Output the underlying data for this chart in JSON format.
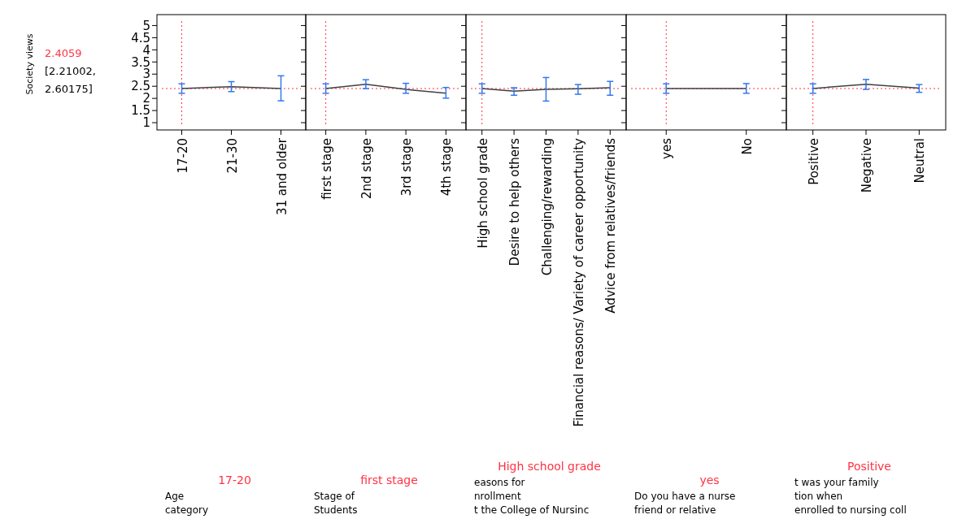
{
  "chart_data": [
    {
      "type": "line",
      "ylabel": "Society views",
      "categories": [
        "17-20",
        "21-30",
        "31 and older"
      ],
      "series": [
        {
          "color": "#404040",
          "values": [
            2.41,
            2.48,
            2.41
          ],
          "errors": [
            [
              2.21,
              2.6
            ],
            [
              2.28,
              2.69
            ],
            [
              1.9,
              2.93
            ]
          ]
        }
      ],
      "ylim": [
        0.7,
        5.45
      ],
      "yticks": [
        1,
        1.5,
        2,
        2.5,
        3,
        3.5,
        4,
        4.5,
        5
      ],
      "ref_lines": [
        {
          "axis": "y",
          "value": 2.4059,
          "color": "#ff3344",
          "line_style": "dotted"
        },
        {
          "axis": "x",
          "value": "17-20",
          "color": "#ff3344",
          "line_style": "dotted"
        }
      ],
      "annotations": [
        "2.4059",
        "[2.21002,",
        "2.60175]",
        "17-20",
        "Age",
        "category"
      ]
    },
    {
      "type": "line",
      "categories": [
        "first stage",
        "2nd stage",
        "3rd stage",
        "4th stage"
      ],
      "series": [
        {
          "color": "#404040",
          "values": [
            2.41,
            2.58,
            2.37,
            2.21
          ],
          "errors": [
            [
              2.21,
              2.6
            ],
            [
              2.4,
              2.77
            ],
            [
              2.21,
              2.62
            ],
            [
              2.01,
              2.45
            ]
          ]
        }
      ],
      "ylim": [
        0.7,
        5.45
      ],
      "yticks": [
        1,
        1.5,
        2,
        2.5,
        3,
        3.5,
        4,
        4.5,
        5
      ],
      "tick_labels": "x",
      "ref_lines": [
        {
          "axis": "y",
          "value": 2.4059,
          "color": "#ff3344",
          "line_style": "dotted"
        },
        {
          "axis": "x",
          "value": "first stage",
          "color": "#ff3344",
          "line_style": "dotted"
        }
      ],
      "annotations": [
        "first stage",
        "Stage of",
        "Students"
      ]
    },
    {
      "type": "line",
      "categories": [
        "High school grade",
        "Desire to help others",
        "Challenging/rewarding",
        "Financial reasons/ Variety of career opportunity",
        "Advice from relatives/friends"
      ],
      "series": [
        {
          "color": "#404040",
          "values": [
            2.41,
            2.3,
            2.37,
            2.4,
            2.44
          ],
          "errors": [
            [
              2.21,
              2.6
            ],
            [
              2.13,
              2.44
            ],
            [
              1.89,
              2.86
            ],
            [
              2.17,
              2.57
            ],
            [
              2.13,
              2.7
            ]
          ]
        }
      ],
      "ylim": [
        0.7,
        5.45
      ],
      "yticks": [
        1,
        1.5,
        2,
        2.5,
        3,
        3.5,
        4,
        4.5,
        5
      ],
      "tick_labels": "x",
      "ref_lines": [
        {
          "axis": "y",
          "value": 2.4059,
          "color": "#ff3344",
          "line_style": "dotted"
        },
        {
          "axis": "x",
          "value": "High school grade",
          "color": "#ff3344",
          "line_style": "dotted"
        }
      ],
      "annotations": [
        "High school grade",
        "easons for",
        "nrollment",
        "t the College of Nursinc"
      ]
    },
    {
      "type": "line",
      "categories": [
        "yes",
        "No"
      ],
      "series": [
        {
          "color": "#404040",
          "values": [
            2.41,
            2.41
          ],
          "errors": [
            [
              2.21,
              2.6
            ],
            [
              2.21,
              2.61
            ]
          ]
        }
      ],
      "ylim": [
        0.7,
        5.45
      ],
      "yticks": [
        1,
        1.5,
        2,
        2.5,
        3,
        3.5,
        4,
        4.5,
        5
      ],
      "tick_labels": "x",
      "ref_lines": [
        {
          "axis": "y",
          "value": 2.4059,
          "color": "#ff3344",
          "line_style": "dotted"
        },
        {
          "axis": "x",
          "value": "yes",
          "color": "#ff3344",
          "line_style": "dotted"
        }
      ],
      "annotations": [
        "yes",
        "Do you have a nurse",
        "friend or relative"
      ]
    },
    {
      "type": "line",
      "categories": [
        "Positive",
        "Negative",
        "Neutral"
      ],
      "series": [
        {
          "color": "#404040",
          "values": [
            2.41,
            2.58,
            2.42
          ],
          "errors": [
            [
              2.21,
              2.6
            ],
            [
              2.37,
              2.78
            ],
            [
              2.25,
              2.57
            ]
          ]
        }
      ],
      "ylim": [
        0.7,
        5.45
      ],
      "yticks": [
        1,
        1.5,
        2,
        2.5,
        3,
        3.5,
        4,
        4.5,
        5
      ],
      "tick_labels": "x",
      "ref_lines": [
        {
          "axis": "y",
          "value": 2.4059,
          "color": "#ff3344",
          "line_style": "dotted"
        },
        {
          "axis": "x",
          "value": "Positive",
          "color": "#ff3344",
          "line_style": "dotted"
        }
      ],
      "annotations": [
        "Positive",
        "t was your family",
        "tion when",
        "enrolled to nursing coll"
      ]
    }
  ]
}
